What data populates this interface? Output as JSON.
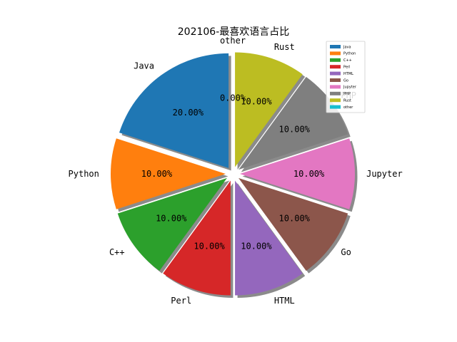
{
  "chart_data": {
    "type": "pie",
    "title": "202106-最喜欢语言占比",
    "categories": [
      "Java",
      "Python",
      "C++",
      "Perl",
      "HTML",
      "Go",
      "Jupyter",
      "PHP",
      "Rust",
      "other"
    ],
    "values": [
      20,
      10,
      10,
      10,
      10,
      10,
      10,
      10,
      10,
      0
    ],
    "percent_labels": [
      "20.00%",
      "10.00%",
      "10.00%",
      "10.00%",
      "10.00%",
      "10.00%",
      "10.00%",
      "10.00%",
      "10.00%",
      "0.00%"
    ],
    "colors": [
      "#1f77b4",
      "#ff7f0e",
      "#2ca02c",
      "#d62728",
      "#9467bd",
      "#8c564b",
      "#e377c2",
      "#7f7f7f",
      "#bcbd22",
      "#17becf"
    ],
    "start_angle_deg": 90,
    "direction": "counterclockwise",
    "exploded": true,
    "shadow": true,
    "legend_placement": "top-right"
  }
}
